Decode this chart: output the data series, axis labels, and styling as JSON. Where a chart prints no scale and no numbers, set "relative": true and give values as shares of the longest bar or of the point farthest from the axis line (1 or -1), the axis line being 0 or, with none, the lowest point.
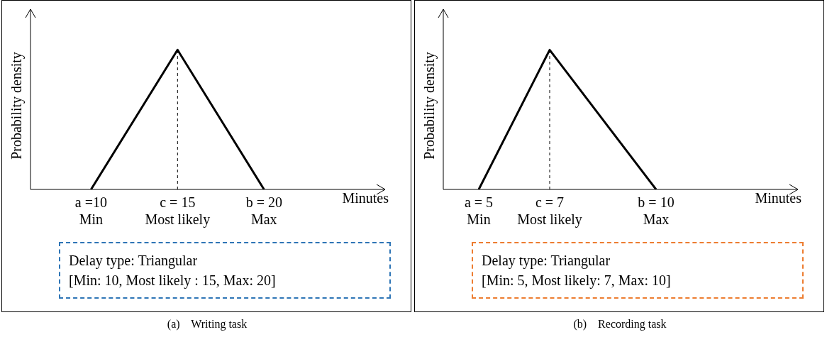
{
  "chart_data": [
    {
      "type": "line",
      "relative": true,
      "ylabel": "Probability density",
      "xlabel": "Minutes",
      "x": [
        10,
        15,
        20
      ],
      "series": [
        {
          "color": "#000000",
          "values": [
            0,
            1,
            0
          ]
        }
      ],
      "xlim": [
        6.5,
        27
      ],
      "xticks": [
        {
          "value": 10,
          "label": "a =10\nMin"
        },
        {
          "value": 15,
          "label": "c = 15\nMost likely"
        },
        {
          "value": 20,
          "label": "b = 20\nMax"
        }
      ],
      "ref_lines": [
        {
          "axis": "x",
          "value": 15,
          "line_style": "dashed",
          "color": "#000000"
        }
      ],
      "line_style": "solid",
      "annotations": [
        "Delay type: Triangular",
        "[Min: 10, Most likely : 15, Max: 20]",
        "(a)    Writing task"
      ]
    },
    {
      "type": "line",
      "relative": true,
      "ylabel": "Probability density",
      "xlabel": "Minutes",
      "x": [
        5,
        7,
        10
      ],
      "series": [
        {
          "color": "#000000",
          "values": [
            0,
            1,
            0
          ]
        }
      ],
      "xlim": [
        4,
        14
      ],
      "xticks": [
        {
          "value": 5,
          "label": "a = 5\nMin"
        },
        {
          "value": 7,
          "label": "c = 7\nMost likely"
        },
        {
          "value": 10,
          "label": "b = 10\nMax"
        }
      ],
      "ref_lines": [
        {
          "axis": "x",
          "value": 7,
          "line_style": "dashed",
          "color": "#000000"
        }
      ],
      "line_style": "solid",
      "annotations": [
        "Delay type: Triangular",
        "[Min: 5, Most likely: 7, Max: 10]",
        "(b)    Recording task"
      ]
    }
  ]
}
